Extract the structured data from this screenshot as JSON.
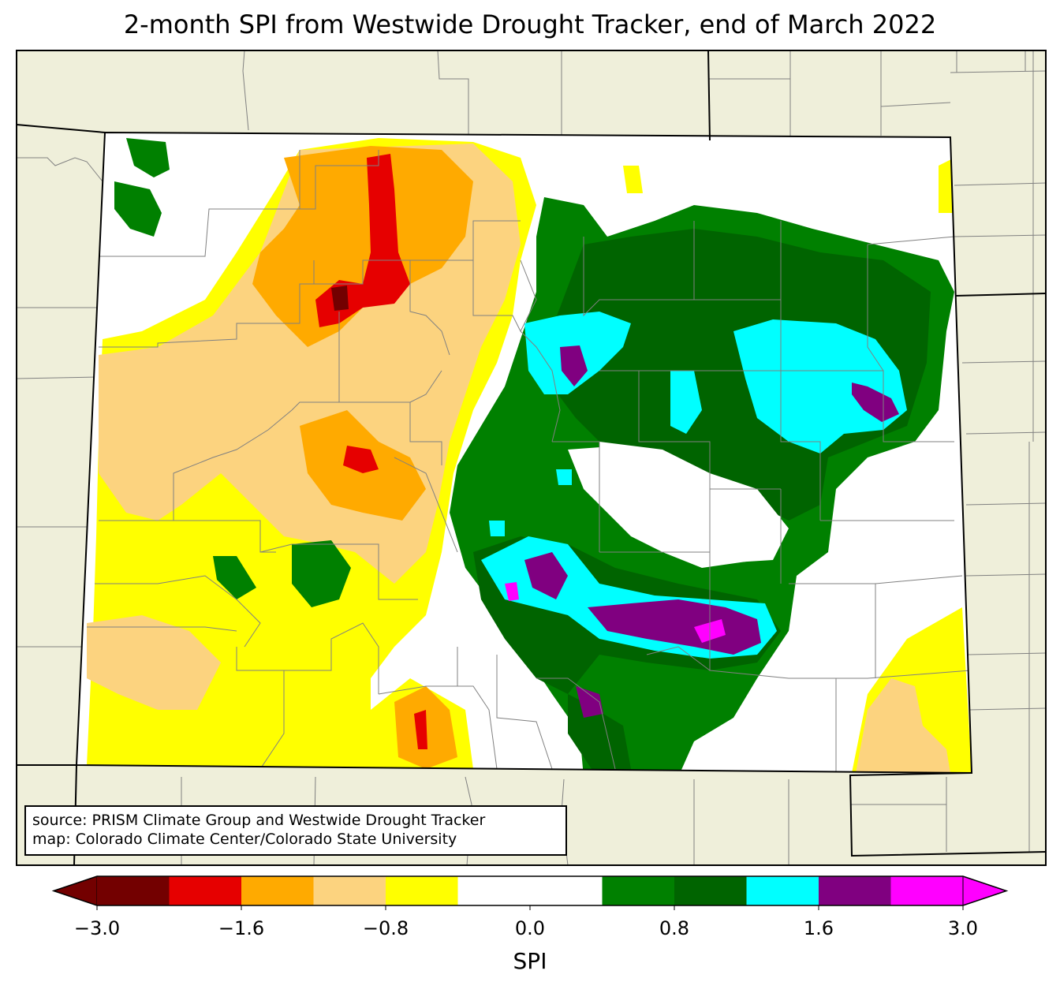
{
  "title": "2-month SPI from Westwide Drought Tracker, end of March 2022",
  "credit": {
    "line1": "source: PRISM Climate Group and Westwide Drought Tracker",
    "line2": "map: Colorado Climate Center/Colorado State University"
  },
  "colorbar": {
    "label": "SPI",
    "ticks": [
      "−3.0",
      "−1.6",
      "−0.8",
      "0.0",
      "0.8",
      "1.6",
      "3.0"
    ],
    "bins": [
      {
        "color": "#730000"
      },
      {
        "color": "#e60000"
      },
      {
        "color": "#ffaa00"
      },
      {
        "color": "#fcd37f"
      },
      {
        "color": "#ffff00"
      },
      {
        "color": "#ffffff"
      },
      {
        "color": "#ffffff"
      },
      {
        "color": "#008000"
      },
      {
        "color": "#006400"
      },
      {
        "color": "#00ffff"
      },
      {
        "color": "#800080"
      },
      {
        "color": "#ff00ff"
      }
    ]
  },
  "colors": {
    "land_outside": "#efefda",
    "border": "#000000",
    "county_line": "#808080"
  }
}
